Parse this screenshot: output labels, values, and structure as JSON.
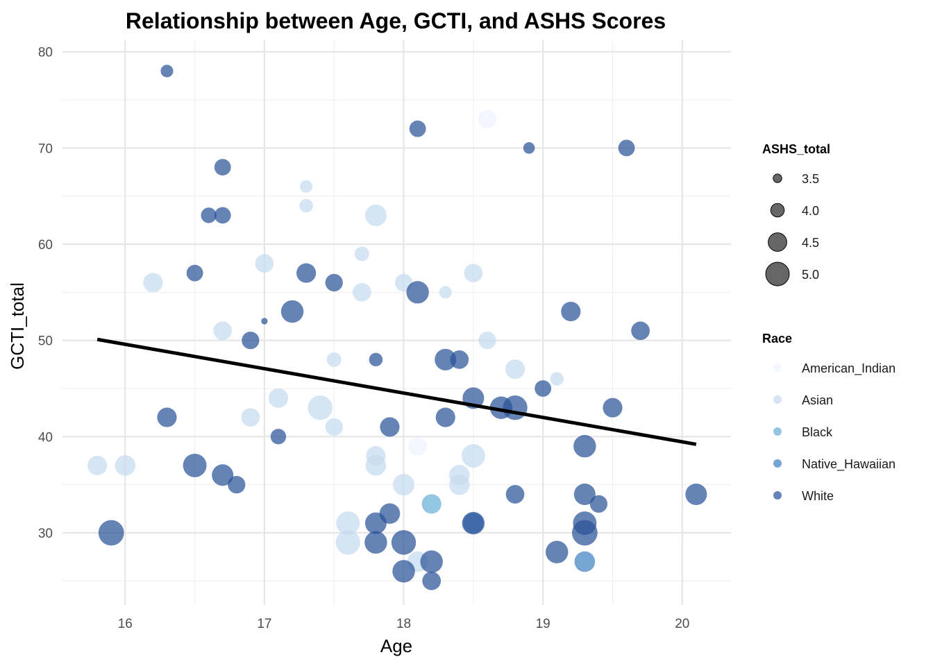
{
  "chart_data": {
    "type": "scatter",
    "title": "Relationship between Age, GCTI, and ASHS Scores",
    "xlabel": "Age",
    "ylabel": "GCTI_total",
    "xlim": [
      15.55,
      20.35
    ],
    "ylim": [
      22.5,
      81.2
    ],
    "x_ticks": [
      "16",
      "17",
      "18",
      "19",
      "20"
    ],
    "y_ticks": [
      "30",
      "40",
      "50",
      "60",
      "70",
      "80"
    ],
    "grid": true,
    "legend_position": "right",
    "size_legend": {
      "title": "ASHS_total",
      "labels": [
        "3.5",
        "4.0",
        "4.5",
        "5.0"
      ],
      "values": [
        3.5,
        4.0,
        4.5,
        5.0
      ]
    },
    "color_legend": {
      "title": "Race",
      "labels": [
        "American_Indian",
        "Asian",
        "Black",
        "Native_Hawaiian",
        "White"
      ],
      "colors": [
        "#eff3ff",
        "#c6dbef",
        "#6baed6",
        "#4182c4",
        "#2b5399"
      ]
    },
    "trend_line": {
      "x": [
        15.8,
        20.1
      ],
      "y": [
        50.1,
        39.2
      ],
      "color": "#000000"
    },
    "points": [
      {
        "x": 16.3,
        "y": 78,
        "size": 3.9,
        "race": "White"
      },
      {
        "x": 18.1,
        "y": 72,
        "size": 4.3,
        "race": "White"
      },
      {
        "x": 18.6,
        "y": 73,
        "size": 4.5,
        "race": "American_Indian"
      },
      {
        "x": 18.9,
        "y": 70,
        "size": 3.8,
        "race": "White"
      },
      {
        "x": 19.6,
        "y": 70,
        "size": 4.3,
        "race": "White"
      },
      {
        "x": 16.7,
        "y": 68,
        "size": 4.3,
        "race": "White"
      },
      {
        "x": 17.3,
        "y": 66,
        "size": 3.9,
        "race": "Asian"
      },
      {
        "x": 17.3,
        "y": 64,
        "size": 4.0,
        "race": "Asian"
      },
      {
        "x": 16.6,
        "y": 63,
        "size": 4.2,
        "race": "White"
      },
      {
        "x": 16.7,
        "y": 63,
        "size": 4.3,
        "race": "White"
      },
      {
        "x": 17.8,
        "y": 63,
        "size": 4.8,
        "race": "Asian"
      },
      {
        "x": 17.7,
        "y": 59,
        "size": 4.1,
        "race": "Asian"
      },
      {
        "x": 17.0,
        "y": 58,
        "size": 4.5,
        "race": "Asian"
      },
      {
        "x": 16.2,
        "y": 56,
        "size": 4.6,
        "race": "Asian"
      },
      {
        "x": 16.5,
        "y": 57,
        "size": 4.3,
        "race": "White"
      },
      {
        "x": 17.3,
        "y": 57,
        "size": 4.6,
        "race": "White"
      },
      {
        "x": 17.5,
        "y": 56,
        "size": 4.4,
        "race": "White"
      },
      {
        "x": 17.7,
        "y": 55,
        "size": 4.5,
        "race": "Asian"
      },
      {
        "x": 18.0,
        "y": 56,
        "size": 4.4,
        "race": "Asian"
      },
      {
        "x": 18.1,
        "y": 55,
        "size": 4.9,
        "race": "White"
      },
      {
        "x": 18.3,
        "y": 55,
        "size": 3.9,
        "race": "Asian"
      },
      {
        "x": 18.5,
        "y": 57,
        "size": 4.5,
        "race": "Asian"
      },
      {
        "x": 17.2,
        "y": 53,
        "size": 4.9,
        "race": "White"
      },
      {
        "x": 17.0,
        "y": 52,
        "size": 3.3,
        "race": "White"
      },
      {
        "x": 19.2,
        "y": 53,
        "size": 4.6,
        "race": "White"
      },
      {
        "x": 16.7,
        "y": 51,
        "size": 4.5,
        "race": "Asian"
      },
      {
        "x": 16.9,
        "y": 50,
        "size": 4.4,
        "race": "White"
      },
      {
        "x": 18.6,
        "y": 50,
        "size": 4.4,
        "race": "Asian"
      },
      {
        "x": 19.7,
        "y": 51,
        "size": 4.5,
        "race": "White"
      },
      {
        "x": 17.5,
        "y": 48,
        "size": 4.1,
        "race": "Asian"
      },
      {
        "x": 17.8,
        "y": 48,
        "size": 4.0,
        "race": "White"
      },
      {
        "x": 18.3,
        "y": 48,
        "size": 4.8,
        "race": "White"
      },
      {
        "x": 18.4,
        "y": 48,
        "size": 4.5,
        "race": "White"
      },
      {
        "x": 18.8,
        "y": 47,
        "size": 4.6,
        "race": "Asian"
      },
      {
        "x": 19.1,
        "y": 46,
        "size": 4.0,
        "race": "Asian"
      },
      {
        "x": 19.0,
        "y": 45,
        "size": 4.3,
        "race": "White"
      },
      {
        "x": 17.1,
        "y": 44,
        "size": 4.6,
        "race": "Asian"
      },
      {
        "x": 17.4,
        "y": 43,
        "size": 5.1,
        "race": "Asian"
      },
      {
        "x": 18.5,
        "y": 44,
        "size": 4.8,
        "race": "White"
      },
      {
        "x": 18.7,
        "y": 43,
        "size": 4.9,
        "race": "White"
      },
      {
        "x": 18.8,
        "y": 43,
        "size": 5.1,
        "race": "White"
      },
      {
        "x": 19.5,
        "y": 43,
        "size": 4.6,
        "race": "White"
      },
      {
        "x": 16.3,
        "y": 42,
        "size": 4.6,
        "race": "White"
      },
      {
        "x": 16.9,
        "y": 42,
        "size": 4.5,
        "race": "Asian"
      },
      {
        "x": 17.5,
        "y": 41,
        "size": 4.4,
        "race": "Asian"
      },
      {
        "x": 17.9,
        "y": 41,
        "size": 4.6,
        "race": "White"
      },
      {
        "x": 18.3,
        "y": 42,
        "size": 4.6,
        "race": "White"
      },
      {
        "x": 17.1,
        "y": 40,
        "size": 4.2,
        "race": "White"
      },
      {
        "x": 18.1,
        "y": 39,
        "size": 4.5,
        "race": "American_Indian"
      },
      {
        "x": 19.3,
        "y": 39,
        "size": 4.9,
        "race": "White"
      },
      {
        "x": 15.8,
        "y": 37,
        "size": 4.6,
        "race": "Asian"
      },
      {
        "x": 16.0,
        "y": 37,
        "size": 4.7,
        "race": "Asian"
      },
      {
        "x": 16.5,
        "y": 37,
        "size": 5.0,
        "race": "White"
      },
      {
        "x": 16.7,
        "y": 36,
        "size": 4.8,
        "race": "White"
      },
      {
        "x": 16.8,
        "y": 35,
        "size": 4.4,
        "race": "White"
      },
      {
        "x": 17.8,
        "y": 38,
        "size": 4.6,
        "race": "Asian"
      },
      {
        "x": 17.8,
        "y": 37,
        "size": 4.7,
        "race": "Asian"
      },
      {
        "x": 18.0,
        "y": 35,
        "size": 4.8,
        "race": "Asian"
      },
      {
        "x": 18.4,
        "y": 36,
        "size": 4.7,
        "race": "Asian"
      },
      {
        "x": 18.4,
        "y": 35,
        "size": 4.7,
        "race": "Asian"
      },
      {
        "x": 18.5,
        "y": 38,
        "size": 5.0,
        "race": "Asian"
      },
      {
        "x": 18.2,
        "y": 33,
        "size": 4.6,
        "race": "Black"
      },
      {
        "x": 18.8,
        "y": 34,
        "size": 4.5,
        "race": "White"
      },
      {
        "x": 19.3,
        "y": 34,
        "size": 4.8,
        "race": "White"
      },
      {
        "x": 19.4,
        "y": 33,
        "size": 4.4,
        "race": "White"
      },
      {
        "x": 20.1,
        "y": 34,
        "size": 4.8,
        "race": "White"
      },
      {
        "x": 15.9,
        "y": 30,
        "size": 5.2,
        "race": "White"
      },
      {
        "x": 17.6,
        "y": 31,
        "size": 5.0,
        "race": "Asian"
      },
      {
        "x": 17.6,
        "y": 29,
        "size": 5.1,
        "race": "Asian"
      },
      {
        "x": 17.8,
        "y": 31,
        "size": 4.8,
        "race": "White"
      },
      {
        "x": 17.8,
        "y": 29,
        "size": 4.9,
        "race": "White"
      },
      {
        "x": 17.9,
        "y": 32,
        "size": 4.7,
        "race": "White"
      },
      {
        "x": 18.0,
        "y": 29,
        "size": 5.1,
        "race": "White"
      },
      {
        "x": 18.1,
        "y": 27,
        "size": 4.7,
        "race": "Asian"
      },
      {
        "x": 18.0,
        "y": 26,
        "size": 4.9,
        "race": "White"
      },
      {
        "x": 18.2,
        "y": 27,
        "size": 4.9,
        "race": "White"
      },
      {
        "x": 18.2,
        "y": 25,
        "size": 4.5,
        "race": "White"
      },
      {
        "x": 18.5,
        "y": 31,
        "size": 4.7,
        "race": "Native_Hawaiian"
      },
      {
        "x": 18.5,
        "y": 31,
        "size": 4.9,
        "race": "White"
      },
      {
        "x": 19.1,
        "y": 28,
        "size": 4.9,
        "race": "White"
      },
      {
        "x": 19.3,
        "y": 31,
        "size": 5.0,
        "race": "White"
      },
      {
        "x": 19.3,
        "y": 30,
        "size": 5.2,
        "race": "White"
      },
      {
        "x": 19.3,
        "y": 27,
        "size": 4.7,
        "race": "Native_Hawaiian"
      }
    ]
  }
}
